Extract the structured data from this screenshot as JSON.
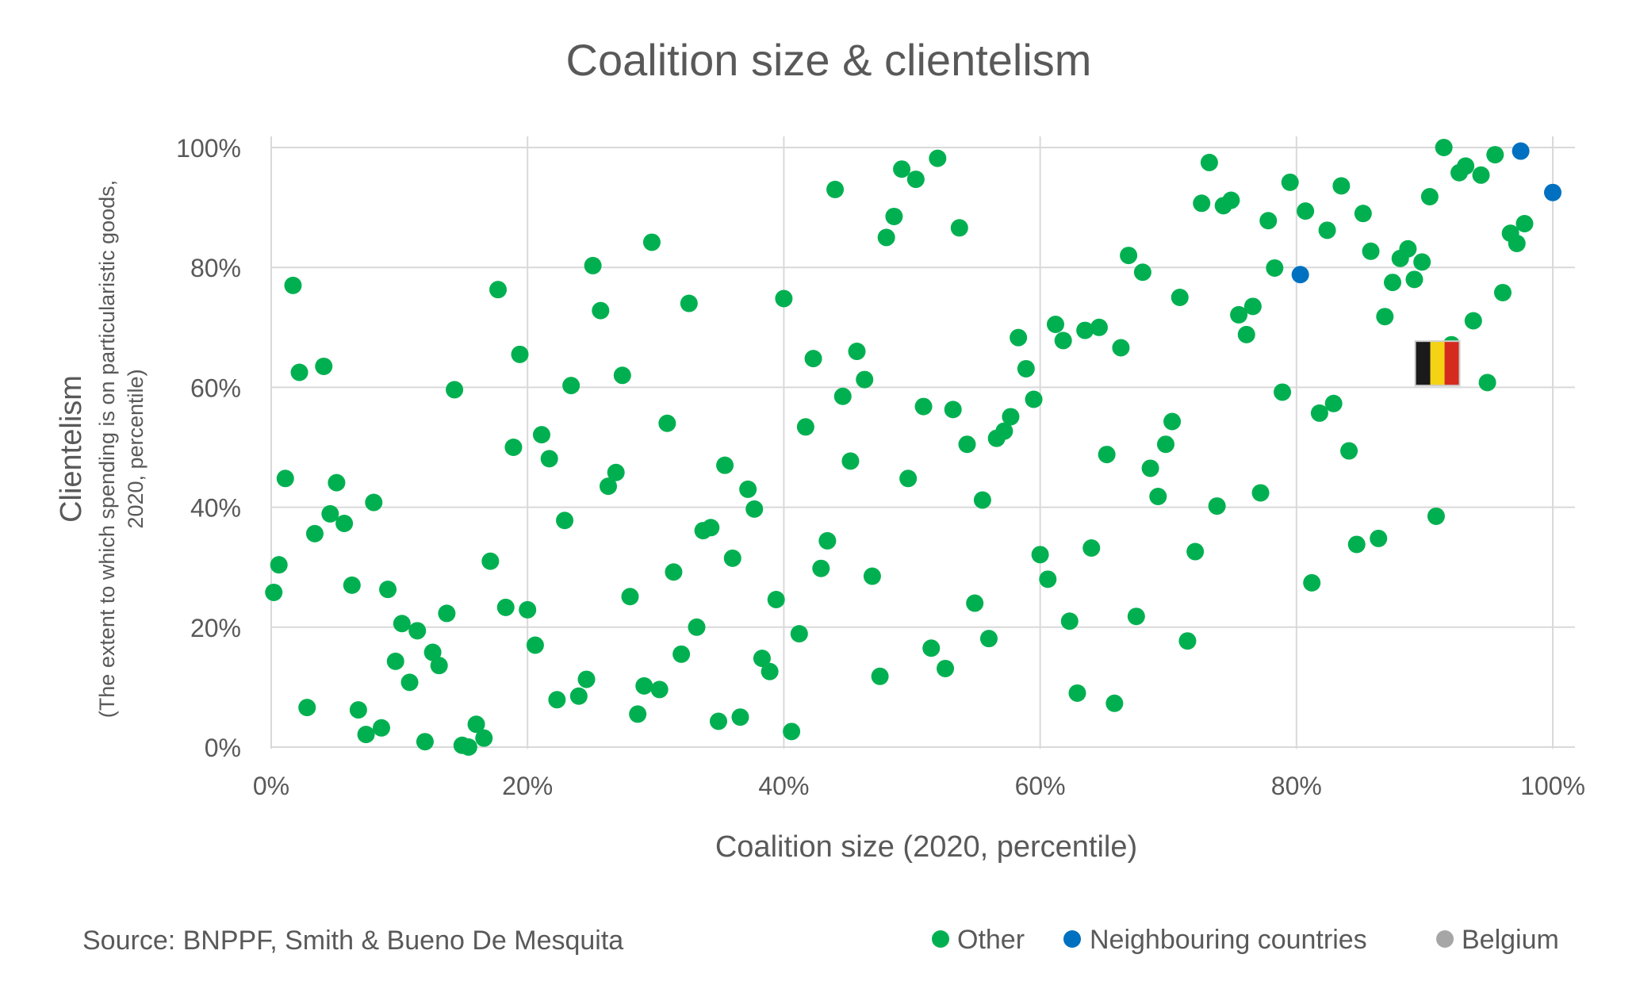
{
  "colors": {
    "other": "#00b050",
    "neighbouring": "#0070c0",
    "belgium": "#a6a6a6",
    "grid": "#d9d9d9",
    "text": "#595959"
  },
  "chart_data": {
    "type": "scatter",
    "title": "Coalition size & clientelism",
    "xlabel": "Coalition size (2020, percentile)",
    "ylabel": "Clientelism",
    "ylabel_sub_1": "(The extent to which spending is on particularistic goods,",
    "ylabel_sub_2": "2020, percentile)",
    "xlim": [
      0,
      100
    ],
    "ylim": [
      0,
      100
    ],
    "x_ticks": [
      "0%",
      "20%",
      "40%",
      "60%",
      "80%",
      "100%"
    ],
    "y_ticks": [
      "0%",
      "20%",
      "40%",
      "60%",
      "80%",
      "100%"
    ],
    "grid": true,
    "legend_position": "bottom-right",
    "source": "Source: BNPPF, Smith & Bueno De Mesquita",
    "series": [
      {
        "name": "Other",
        "color": "#00b050",
        "points": [
          [
            0.2,
            25.8
          ],
          [
            0.6,
            30.4
          ],
          [
            1.1,
            44.8
          ],
          [
            1.7,
            77.0
          ],
          [
            2.2,
            62.5
          ],
          [
            2.8,
            6.6
          ],
          [
            3.4,
            35.6
          ],
          [
            4.1,
            63.5
          ],
          [
            4.6,
            38.9
          ],
          [
            5.1,
            44.1
          ],
          [
            5.7,
            37.3
          ],
          [
            6.3,
            27.0
          ],
          [
            6.8,
            6.2
          ],
          [
            7.4,
            2.1
          ],
          [
            8.0,
            40.8
          ],
          [
            8.6,
            3.2
          ],
          [
            9.1,
            26.3
          ],
          [
            10.2,
            20.6
          ],
          [
            9.7,
            14.3
          ],
          [
            10.8,
            10.8
          ],
          [
            11.4,
            19.4
          ],
          [
            12.0,
            0.9
          ],
          [
            12.6,
            15.8
          ],
          [
            13.1,
            13.6
          ],
          [
            13.7,
            22.3
          ],
          [
            14.3,
            59.6
          ],
          [
            14.9,
            0.3
          ],
          [
            15.4,
            0.0
          ],
          [
            16.0,
            3.8
          ],
          [
            16.6,
            1.5
          ],
          [
            17.1,
            31.0
          ],
          [
            17.7,
            76.3
          ],
          [
            18.3,
            23.3
          ],
          [
            18.9,
            50.0
          ],
          [
            19.4,
            65.5
          ],
          [
            20.0,
            22.9
          ],
          [
            20.6,
            17.0
          ],
          [
            21.1,
            52.1
          ],
          [
            21.7,
            48.1
          ],
          [
            22.3,
            7.9
          ],
          [
            22.9,
            37.8
          ],
          [
            23.4,
            60.3
          ],
          [
            24.0,
            8.5
          ],
          [
            24.6,
            11.3
          ],
          [
            25.1,
            80.3
          ],
          [
            25.7,
            72.8
          ],
          [
            26.3,
            43.5
          ],
          [
            26.9,
            45.8
          ],
          [
            27.4,
            62.0
          ],
          [
            28.0,
            25.1
          ],
          [
            28.6,
            5.5
          ],
          [
            29.1,
            10.2
          ],
          [
            29.7,
            84.2
          ],
          [
            30.3,
            9.6
          ],
          [
            30.9,
            54.0
          ],
          [
            31.4,
            29.2
          ],
          [
            32.0,
            15.5
          ],
          [
            32.6,
            74.0
          ],
          [
            33.2,
            20.0
          ],
          [
            33.7,
            36.1
          ],
          [
            34.3,
            36.6
          ],
          [
            34.9,
            4.3
          ],
          [
            35.4,
            47.0
          ],
          [
            36.0,
            31.5
          ],
          [
            36.6,
            5.0
          ],
          [
            37.2,
            43.0
          ],
          [
            37.7,
            39.7
          ],
          [
            38.3,
            14.8
          ],
          [
            38.9,
            12.6
          ],
          [
            39.4,
            24.6
          ],
          [
            40.0,
            74.8
          ],
          [
            40.6,
            2.6
          ],
          [
            41.2,
            18.9
          ],
          [
            41.7,
            53.4
          ],
          [
            42.3,
            64.8
          ],
          [
            42.9,
            29.8
          ],
          [
            43.4,
            34.4
          ],
          [
            44.0,
            93.0
          ],
          [
            44.6,
            58.5
          ],
          [
            45.2,
            47.7
          ],
          [
            45.7,
            66.0
          ],
          [
            46.3,
            61.3
          ],
          [
            46.9,
            28.5
          ],
          [
            47.5,
            11.8
          ],
          [
            48.0,
            85.0
          ],
          [
            48.6,
            88.5
          ],
          [
            49.2,
            96.4
          ],
          [
            49.7,
            44.8
          ],
          [
            50.3,
            94.7
          ],
          [
            50.9,
            56.8
          ],
          [
            51.5,
            16.5
          ],
          [
            52.0,
            98.2
          ],
          [
            52.6,
            13.1
          ],
          [
            53.2,
            56.3
          ],
          [
            53.7,
            86.6
          ],
          [
            54.3,
            50.5
          ],
          [
            54.9,
            24.0
          ],
          [
            55.5,
            41.2
          ],
          [
            56.0,
            18.1
          ],
          [
            56.6,
            51.5
          ],
          [
            57.2,
            52.7
          ],
          [
            57.7,
            55.1
          ],
          [
            58.3,
            68.3
          ],
          [
            58.9,
            63.1
          ],
          [
            59.5,
            58.0
          ],
          [
            60.0,
            32.1
          ],
          [
            60.6,
            28.0
          ],
          [
            61.2,
            70.5
          ],
          [
            61.8,
            67.8
          ],
          [
            62.3,
            21.0
          ],
          [
            62.9,
            9.0
          ],
          [
            63.5,
            69.5
          ],
          [
            64.0,
            33.2
          ],
          [
            64.6,
            70.0
          ],
          [
            65.2,
            48.8
          ],
          [
            65.8,
            7.3
          ],
          [
            66.3,
            66.6
          ],
          [
            66.9,
            82.0
          ],
          [
            67.5,
            21.8
          ],
          [
            68.0,
            79.2
          ],
          [
            68.6,
            46.5
          ],
          [
            69.2,
            41.8
          ],
          [
            69.8,
            50.5
          ],
          [
            70.3,
            54.3
          ],
          [
            70.9,
            75.0
          ],
          [
            71.5,
            17.7
          ],
          [
            72.1,
            32.6
          ],
          [
            72.6,
            90.7
          ],
          [
            73.2,
            97.5
          ],
          [
            73.8,
            40.2
          ],
          [
            74.3,
            90.3
          ],
          [
            74.9,
            91.2
          ],
          [
            75.5,
            72.1
          ],
          [
            76.1,
            68.8
          ],
          [
            76.6,
            73.5
          ],
          [
            77.2,
            42.4
          ],
          [
            77.8,
            87.8
          ],
          [
            78.3,
            79.9
          ],
          [
            78.9,
            59.2
          ],
          [
            79.5,
            94.2
          ],
          [
            80.7,
            89.4
          ],
          [
            81.2,
            27.4
          ],
          [
            81.8,
            55.7
          ],
          [
            82.4,
            86.2
          ],
          [
            82.9,
            57.3
          ],
          [
            83.5,
            93.6
          ],
          [
            84.1,
            49.4
          ],
          [
            84.7,
            33.8
          ],
          [
            85.2,
            89.0
          ],
          [
            85.8,
            82.7
          ],
          [
            86.4,
            34.8
          ],
          [
            86.9,
            71.8
          ],
          [
            87.5,
            77.5
          ],
          [
            88.1,
            81.5
          ],
          [
            88.7,
            83.1
          ],
          [
            89.2,
            78.0
          ],
          [
            89.8,
            80.9
          ],
          [
            90.4,
            91.8
          ],
          [
            90.9,
            38.5
          ],
          [
            91.5,
            100.0
          ],
          [
            92.1,
            67.1
          ],
          [
            92.7,
            95.8
          ],
          [
            93.2,
            96.9
          ],
          [
            93.8,
            71.1
          ],
          [
            94.4,
            95.4
          ],
          [
            94.9,
            60.8
          ],
          [
            95.5,
            98.8
          ],
          [
            96.1,
            75.8
          ],
          [
            96.7,
            85.7
          ],
          [
            97.2,
            84.0
          ],
          [
            97.8,
            87.3
          ]
        ]
      },
      {
        "name": "Neighbouring countries",
        "color": "#0070c0",
        "points": [
          [
            80.3,
            78.8
          ],
          [
            97.5,
            99.4
          ],
          [
            100.0,
            92.5
          ]
        ]
      },
      {
        "name": "Belgium",
        "color": "#a6a6a6",
        "points": [
          [
            91.0,
            64.0
          ]
        ]
      }
    ]
  }
}
